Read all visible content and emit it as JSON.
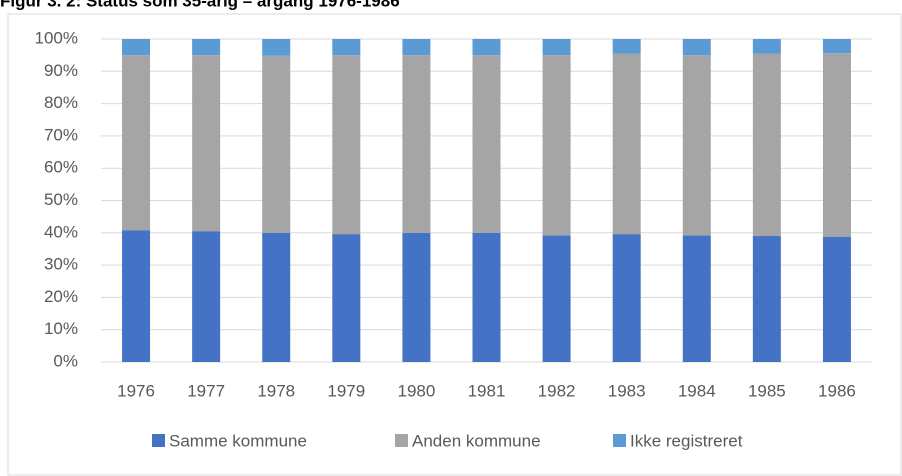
{
  "chart_data": {
    "type": "bar",
    "stacked": true,
    "title": "Figur 3. 2: Status som 35-årig – årgang 1976-1986",
    "categories": [
      "1976",
      "1977",
      "1978",
      "1979",
      "1980",
      "1981",
      "1982",
      "1983",
      "1984",
      "1985",
      "1986"
    ],
    "series": [
      {
        "name": "Samme kommune",
        "color": "#4472c4",
        "values": [
          40.8,
          40.5,
          40.0,
          39.6,
          40.0,
          40.0,
          39.2,
          39.6,
          39.2,
          39.0,
          38.8
        ]
      },
      {
        "name": "Anden kommune",
        "color": "#a5a5a5",
        "values": [
          54.2,
          54.5,
          54.8,
          55.4,
          55.0,
          55.0,
          55.8,
          55.8,
          55.8,
          56.4,
          56.8
        ]
      },
      {
        "name": "Ikke registreret",
        "color": "#5b9bd5",
        "values": [
          5.0,
          5.0,
          5.2,
          5.0,
          5.0,
          5.0,
          5.0,
          4.6,
          5.0,
          4.6,
          4.4
        ]
      }
    ],
    "ylim": [
      0,
      100
    ],
    "yticks": [
      {
        "value": 0,
        "label": "0%"
      },
      {
        "value": 10,
        "label": "10%"
      },
      {
        "value": 20,
        "label": "20%"
      },
      {
        "value": 30,
        "label": "30%"
      },
      {
        "value": 40,
        "label": "40%"
      },
      {
        "value": 50,
        "label": "50%"
      },
      {
        "value": 60,
        "label": "60%"
      },
      {
        "value": 70,
        "label": "70%"
      },
      {
        "value": 80,
        "label": "80%"
      },
      {
        "value": 90,
        "label": "90%"
      },
      {
        "value": 100,
        "label": "100%"
      }
    ],
    "grid": true,
    "legend": "bottom"
  }
}
